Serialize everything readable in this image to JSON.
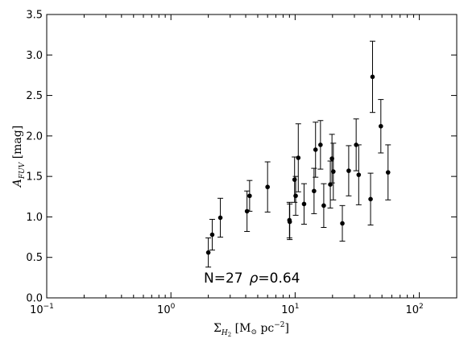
{
  "chart_data": {
    "type": "scatter",
    "xscale": "log",
    "xlim": [
      0.1,
      200
    ],
    "ylim": [
      0.0,
      3.5
    ],
    "grid": false,
    "x_ticks": [
      {
        "value": 0.1,
        "base": "10",
        "exp": "−1"
      },
      {
        "value": 1,
        "base": "10",
        "exp": "0"
      },
      {
        "value": 10,
        "base": "10",
        "exp": "1"
      },
      {
        "value": 100,
        "base": "10",
        "exp": "2"
      }
    ],
    "y_ticks": [
      "0.0",
      "0.5",
      "1.0",
      "1.5",
      "2.0",
      "2.5",
      "3.0",
      "3.5"
    ],
    "xlabel": {
      "main": "Σ",
      "sub": "H",
      "subsub": "2",
      "rest": " [M",
      "sun": "⊙",
      "unit": " pc",
      "unit_exp": "−2",
      "close": "]"
    },
    "ylabel": {
      "main": "A",
      "sub": "FUV",
      "rest": " [mag]"
    },
    "annotation": {
      "n_text": "N=27",
      "rho_symbol": "ρ",
      "rho_text": "=0.64"
    },
    "points": [
      {
        "x": 2.0,
        "y": 0.56,
        "err": 0.18
      },
      {
        "x": 2.15,
        "y": 0.78,
        "err": 0.19
      },
      {
        "x": 2.5,
        "y": 0.99,
        "err": 0.24
      },
      {
        "x": 4.1,
        "y": 1.07,
        "err": 0.25
      },
      {
        "x": 4.3,
        "y": 1.26,
        "err": 0.19
      },
      {
        "x": 6.0,
        "y": 1.37,
        "err": 0.31
      },
      {
        "x": 9.0,
        "y": 0.96,
        "err": 0.22
      },
      {
        "x": 9.05,
        "y": 0.94,
        "err": 0.22
      },
      {
        "x": 9.9,
        "y": 1.46,
        "err": 0.28
      },
      {
        "x": 10.1,
        "y": 1.26,
        "err": 0.24
      },
      {
        "x": 10.6,
        "y": 1.73,
        "err": 0.42
      },
      {
        "x": 11.8,
        "y": 1.16,
        "err": 0.25
      },
      {
        "x": 14.2,
        "y": 1.32,
        "err": 0.28
      },
      {
        "x": 14.6,
        "y": 1.83,
        "err": 0.34
      },
      {
        "x": 16.0,
        "y": 1.89,
        "err": 0.3
      },
      {
        "x": 17.0,
        "y": 1.14,
        "err": 0.27
      },
      {
        "x": 19.2,
        "y": 1.4,
        "err": 0.29
      },
      {
        "x": 19.8,
        "y": 1.72,
        "err": 0.3
      },
      {
        "x": 20.3,
        "y": 1.56,
        "err": 0.35
      },
      {
        "x": 24.0,
        "y": 0.92,
        "err": 0.22
      },
      {
        "x": 27.0,
        "y": 1.57,
        "err": 0.31
      },
      {
        "x": 31.0,
        "y": 1.89,
        "err": 0.32
      },
      {
        "x": 32.5,
        "y": 1.52,
        "err": 0.37
      },
      {
        "x": 40.5,
        "y": 1.22,
        "err": 0.32
      },
      {
        "x": 42.0,
        "y": 2.73,
        "err": 0.44
      },
      {
        "x": 49.0,
        "y": 2.12,
        "err": 0.33
      },
      {
        "x": 56.0,
        "y": 1.55,
        "err": 0.34
      }
    ]
  }
}
